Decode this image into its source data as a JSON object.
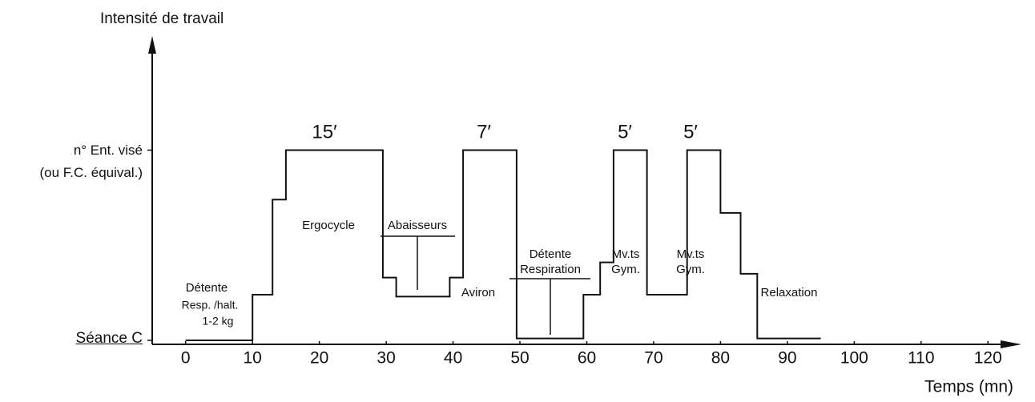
{
  "chart_data": {
    "type": "line",
    "step": true,
    "title": "Intensité de travail",
    "x_label": "Temps (mn)",
    "x": [
      0,
      10,
      13,
      15,
      29.5,
      31.5,
      39.5,
      41.5,
      49.5,
      59.5,
      62,
      64,
      69,
      75,
      80,
      83,
      85.5,
      95
    ],
    "values": [
      0,
      0.24,
      0.74,
      1,
      0.33,
      0.23,
      0.33,
      1,
      0.01,
      0.24,
      0.41,
      1,
      0.24,
      1,
      0.67,
      0.35,
      0.01,
      0.01
    ],
    "color": "#111111",
    "xlim": [
      -5,
      125
    ],
    "xticks": [
      0,
      10,
      20,
      30,
      40,
      50,
      60,
      70,
      80,
      90,
      100,
      110,
      120
    ],
    "ylim": [
      0,
      1.6
    ],
    "yticks": [
      {
        "value": 0,
        "label": "Séance C"
      },
      {
        "value": 1,
        "label": "n° Ent. visé\n(ou F.C. équival.)"
      }
    ],
    "grid": false,
    "annotations": [
      "15′",
      "7′",
      "5′",
      "5′",
      "Ergocycle",
      "Abaisseurs",
      "Aviron",
      "Détente",
      "Respiration",
      "Mv.ts",
      "Gym.",
      "Mv.ts",
      "Gym.",
      "Relaxation",
      "Détente",
      "Resp. /halt.",
      "1-2 kg"
    ]
  }
}
